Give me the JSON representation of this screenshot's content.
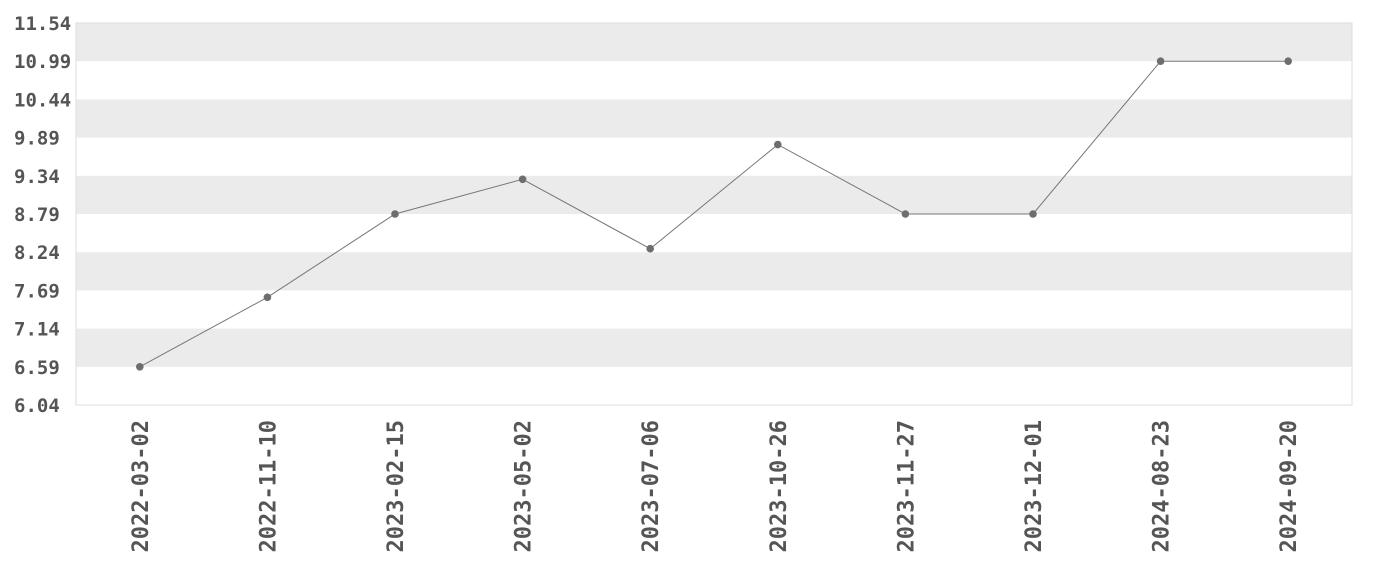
{
  "chart_data": {
    "type": "line",
    "title": "",
    "xlabel": "",
    "ylabel": "",
    "x": [
      "2022-03-02",
      "2022-11-10",
      "2023-02-15",
      "2023-05-02",
      "2023-07-06",
      "2023-10-26",
      "2023-11-27",
      "2023-12-01",
      "2024-08-23",
      "2024-09-20"
    ],
    "series": [
      {
        "values": [
          6.59,
          7.59,
          8.79,
          9.29,
          8.29,
          9.79,
          8.79,
          8.79,
          10.99,
          10.99
        ]
      }
    ],
    "ylim": [
      6.04,
      11.54
    ],
    "yticks": [
      "6.04",
      "6.59",
      "7.14",
      "7.69",
      "8.24",
      "8.79",
      "9.34",
      "9.89",
      "10.44",
      "10.99",
      "11.54"
    ],
    "grid": "alternating horizontal bands",
    "legend": "none",
    "colors": {
      "line": "#777777",
      "point": "#6e6e6e",
      "band": "#ebebeb",
      "text": "#555555"
    }
  }
}
